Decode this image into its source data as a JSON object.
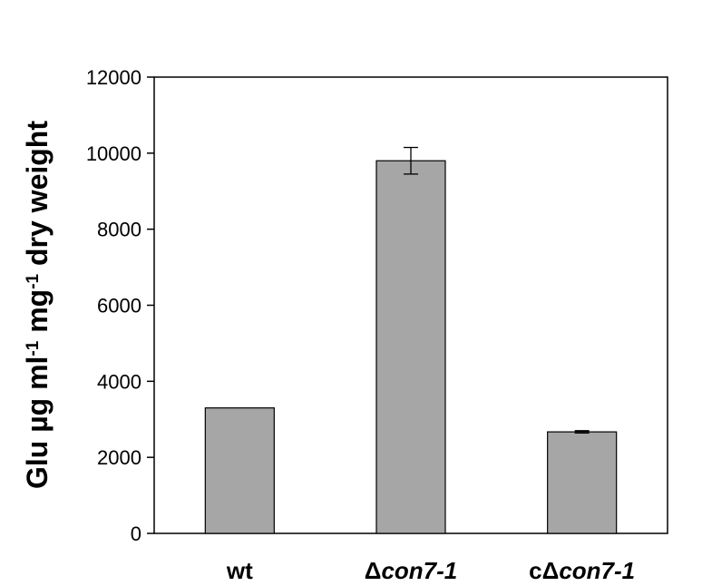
{
  "chart_data": {
    "type": "bar",
    "categories": [
      {
        "parts": [
          {
            "t": "wt",
            "i": false
          }
        ]
      },
      {
        "parts": [
          {
            "t": "Δ",
            "i": false
          },
          {
            "t": "con7-1",
            "i": true
          }
        ]
      },
      {
        "parts": [
          {
            "t": "cΔ",
            "i": false
          },
          {
            "t": "con7-1",
            "i": true
          }
        ]
      }
    ],
    "values": [
      3300,
      9800,
      2670
    ],
    "errors": [
      0,
      350,
      30
    ],
    "ylabel_parts": [
      {
        "t": "Glu µg ml",
        "sup": false
      },
      {
        "t": "-1",
        "sup": true
      },
      {
        "t": "  mg",
        "sup": false
      },
      {
        "t": "-1",
        "sup": true
      },
      {
        "t": " dry weight",
        "sup": false
      }
    ],
    "ylim": [
      0,
      12000
    ],
    "yticks": [
      "0",
      "2000",
      "4000",
      "6000",
      "8000",
      "10000",
      "12000"
    ],
    "bar_color": "#a6a6a6",
    "edge_color": "#000000",
    "grid": false,
    "legend": false
  }
}
